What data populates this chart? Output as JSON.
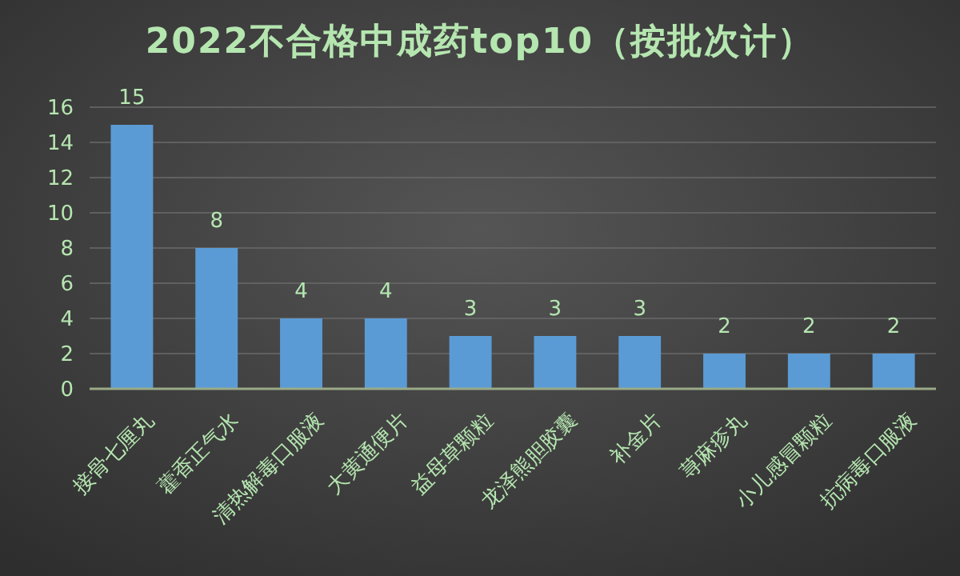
{
  "chart_data": {
    "type": "bar",
    "title": "2022不合格中成药top10（按批次计）",
    "categories": [
      "接骨七厘丸",
      "藿香正气水",
      "清热解毒口服液",
      "大黄通便片",
      "益母草颗粒",
      "龙泽熊胆胶囊",
      "补金片",
      "荨麻疹丸",
      "小儿感冒颗粒",
      "抗病毒口服液"
    ],
    "values": [
      15,
      8,
      4,
      4,
      3,
      3,
      3,
      2,
      2,
      2
    ],
    "color": "#5b9bd5",
    "ylim": [
      0,
      16
    ],
    "yticks": [
      0,
      2,
      4,
      6,
      8,
      10,
      12,
      14,
      16
    ],
    "grid": "y",
    "data_labels": true
  }
}
